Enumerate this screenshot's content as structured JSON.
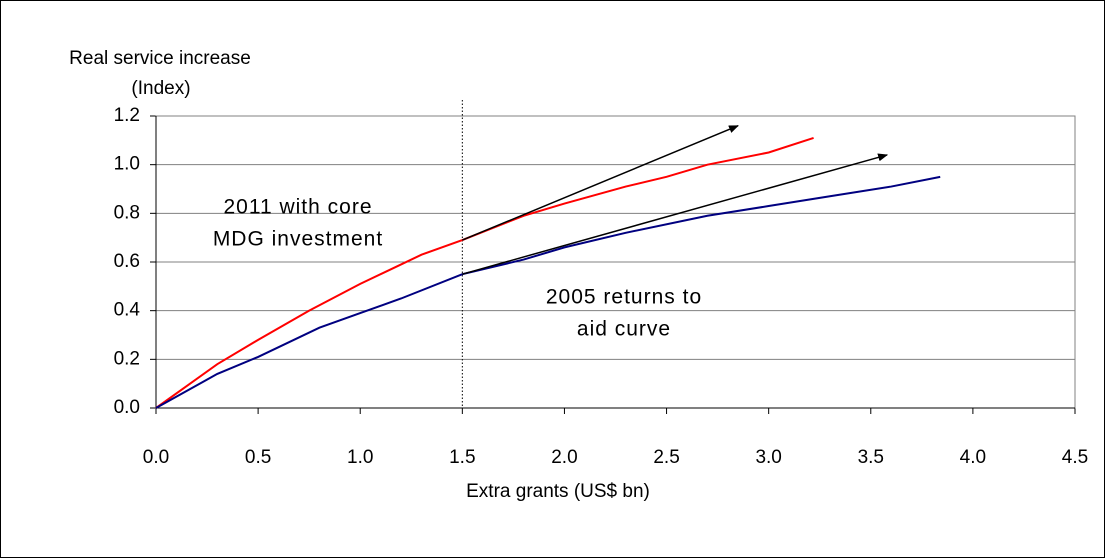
{
  "chart_data": {
    "type": "line",
    "y_label": [
      "Real service increase",
      "(Index)"
    ],
    "x_label": "Extra grants (US$ bn)",
    "xlim": [
      0,
      4.5
    ],
    "ylim": [
      0,
      1.2
    ],
    "xticks": [
      {
        "value": 0,
        "label": "0.0"
      },
      {
        "value": 0.5,
        "label": "0.5"
      },
      {
        "value": 1,
        "label": "1.0"
      },
      {
        "value": 1.5,
        "label": "1.5"
      },
      {
        "value": 2,
        "label": "2.0"
      },
      {
        "value": 2.5,
        "label": "2.5"
      },
      {
        "value": 3,
        "label": "3.0"
      },
      {
        "value": 3.5,
        "label": "3.5"
      },
      {
        "value": 4,
        "label": "4.0"
      },
      {
        "value": 4.5,
        "label": "4.5"
      }
    ],
    "yticks": [
      {
        "value": 0,
        "label": "0.0"
      },
      {
        "value": 0.2,
        "label": "0.2"
      },
      {
        "value": 0.4,
        "label": "0.4"
      },
      {
        "value": 0.6,
        "label": "0.6"
      },
      {
        "value": 0.8,
        "label": "0.8"
      },
      {
        "value": 1,
        "label": "1.0"
      },
      {
        "value": 1.2,
        "label": "1.2"
      }
    ],
    "grid": true,
    "vline": 1.5,
    "series": [
      {
        "color": "#ff0000",
        "x": [
          0,
          0.3,
          0.5,
          0.75,
          1.0,
          1.15,
          1.3,
          1.5,
          1.8,
          2.0,
          2.3,
          2.5,
          2.7,
          3.0,
          3.22
        ],
        "values": [
          0,
          0.18,
          0.28,
          0.4,
          0.51,
          0.57,
          0.63,
          0.69,
          0.79,
          0.84,
          0.91,
          0.95,
          1.0,
          1.05,
          1.11
        ]
      },
      {
        "color": "#000080",
        "x": [
          0,
          0.3,
          0.5,
          0.8,
          1.0,
          1.2,
          1.5,
          1.8,
          2.0,
          2.3,
          2.7,
          3.0,
          3.3,
          3.6,
          3.84
        ],
        "values": [
          0,
          0.14,
          0.21,
          0.33,
          0.39,
          0.45,
          0.55,
          0.61,
          0.66,
          0.72,
          0.79,
          0.83,
          0.87,
          0.91,
          0.95
        ]
      }
    ],
    "arrows": [
      {
        "x": [
          1.5,
          2.85
        ],
        "y": [
          0.69,
          1.16
        ]
      },
      {
        "x": [
          1.5,
          3.58
        ],
        "y": [
          0.55,
          1.04
        ]
      }
    ],
    "annotations": [
      {
        "lines": [
          "2011 with core",
          "MDG investment"
        ]
      },
      {
        "lines": [
          "2005 returns to",
          "aid curve"
        ]
      }
    ]
  }
}
